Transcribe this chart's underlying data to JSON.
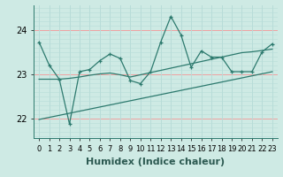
{
  "x": [
    0,
    1,
    2,
    3,
    4,
    5,
    6,
    7,
    8,
    9,
    10,
    11,
    12,
    13,
    14,
    15,
    16,
    17,
    18,
    19,
    20,
    21,
    22,
    23
  ],
  "main_y": [
    23.72,
    23.2,
    22.88,
    21.87,
    23.05,
    23.1,
    23.3,
    23.45,
    23.35,
    22.85,
    22.78,
    23.05,
    23.72,
    24.3,
    23.88,
    23.15,
    23.52,
    23.38,
    23.38,
    23.05,
    23.05,
    23.05,
    23.5,
    23.68
  ],
  "smooth_y": [
    22.88,
    22.88,
    22.88,
    22.9,
    22.93,
    22.97,
    23.0,
    23.02,
    22.98,
    22.93,
    22.98,
    23.03,
    23.08,
    23.13,
    23.18,
    23.23,
    23.28,
    23.33,
    23.38,
    23.43,
    23.48,
    23.5,
    23.53,
    23.56
  ],
  "trend_x": [
    0,
    23
  ],
  "trend_y": [
    21.97,
    23.05
  ],
  "line_color": "#2d7a6e",
  "bg_color": "#ceeae4",
  "grid_major_color": "#f0a0a0",
  "grid_minor_color": "#b8dcd8",
  "xlabel": "Humidex (Indice chaleur)",
  "xlabel_fontsize": 8,
  "ylim": [
    21.55,
    24.55
  ],
  "xlim": [
    -0.5,
    23.5
  ],
  "yticks": [
    22,
    23,
    24
  ],
  "ytick_fontsize": 7,
  "xtick_fontsize": 6,
  "marker_size": 3.5,
  "lw": 0.9
}
